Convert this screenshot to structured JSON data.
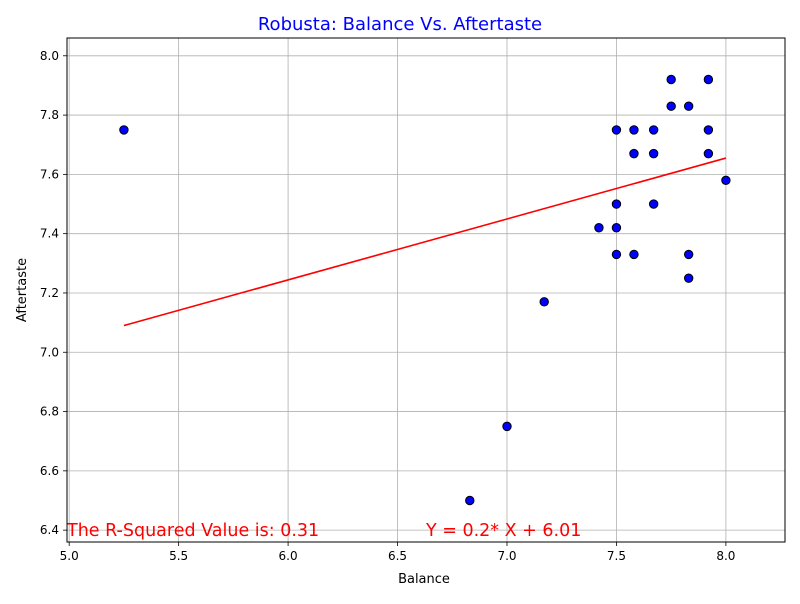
{
  "chart_data": {
    "type": "scatter",
    "title": "Robusta: Balance Vs. Aftertaste",
    "xlabel": "Balance",
    "ylabel": "Aftertaste",
    "xlim": [
      4.99,
      8.27
    ],
    "ylim": [
      6.36,
      8.06
    ],
    "x_ticks": [
      5.0,
      5.5,
      6.0,
      6.5,
      7.0,
      7.5,
      8.0
    ],
    "x_tick_labels": [
      "5.0",
      "5.5",
      "6.0",
      "6.5",
      "7.0",
      "7.5",
      "8.0"
    ],
    "y_ticks": [
      6.4,
      6.6,
      6.8,
      7.0,
      7.2,
      7.4,
      7.6,
      7.8,
      8.0
    ],
    "y_tick_labels": [
      "6.4",
      "6.6",
      "6.8",
      "7.0",
      "7.2",
      "7.4",
      "7.6",
      "7.8",
      "8.0"
    ],
    "grid": true,
    "colors": {
      "title": "#0000ff",
      "marker_fill": "#0000ff",
      "marker_edge": "#000000",
      "regression": "#ff0000",
      "annotation": "#ff0000",
      "grid": "#b0b0b0"
    },
    "points": [
      {
        "x": 5.25,
        "y": 7.75
      },
      {
        "x": 6.83,
        "y": 6.5
      },
      {
        "x": 7.0,
        "y": 6.75
      },
      {
        "x": 7.17,
        "y": 7.17
      },
      {
        "x": 7.42,
        "y": 7.42
      },
      {
        "x": 7.5,
        "y": 7.75
      },
      {
        "x": 7.5,
        "y": 7.5
      },
      {
        "x": 7.5,
        "y": 7.42
      },
      {
        "x": 7.5,
        "y": 7.33
      },
      {
        "x": 7.58,
        "y": 7.75
      },
      {
        "x": 7.58,
        "y": 7.67
      },
      {
        "x": 7.58,
        "y": 7.33
      },
      {
        "x": 7.67,
        "y": 7.75
      },
      {
        "x": 7.67,
        "y": 7.67
      },
      {
        "x": 7.67,
        "y": 7.5
      },
      {
        "x": 7.75,
        "y": 7.92
      },
      {
        "x": 7.75,
        "y": 7.83
      },
      {
        "x": 7.83,
        "y": 7.83
      },
      {
        "x": 7.83,
        "y": 7.33
      },
      {
        "x": 7.83,
        "y": 7.25
      },
      {
        "x": 7.92,
        "y": 7.92
      },
      {
        "x": 7.92,
        "y": 7.75
      },
      {
        "x": 7.92,
        "y": 7.67
      },
      {
        "x": 8.0,
        "y": 7.58
      }
    ],
    "regression": {
      "slope": 0.2,
      "intercept": 6.01,
      "x_start": 5.25,
      "y_start": 7.09,
      "x_end": 8.0,
      "y_end": 7.655
    },
    "annotations": [
      {
        "text": "The R-Squared Value is: 0.31",
        "x": 4.99,
        "y": 6.38
      },
      {
        "text": "Y = 0.2* X + 6.01",
        "x": 6.63,
        "y": 6.38
      }
    ]
  }
}
